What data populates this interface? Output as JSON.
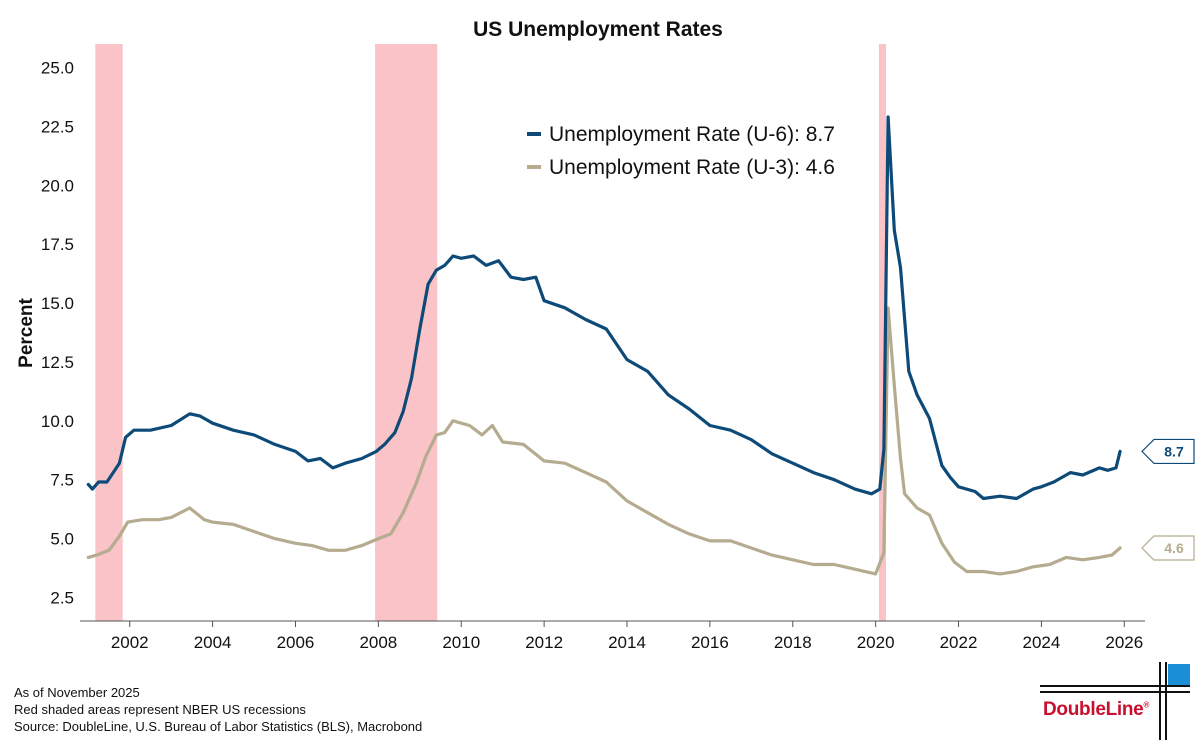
{
  "chart_data": {
    "type": "line",
    "title": "US Unemployment Rates",
    "ylabel": "Percent",
    "xlabel": "",
    "xlim": [
      2000.8,
      2026.5
    ],
    "ylim": [
      1.5,
      26.0
    ],
    "yticks": [
      2.5,
      5.0,
      7.5,
      10.0,
      12.5,
      15.0,
      17.5,
      20.0,
      22.5,
      25.0
    ],
    "ytick_labels": [
      "2.5",
      "5.0",
      "7.5",
      "10.0",
      "12.5",
      "15.0",
      "17.5",
      "20.0",
      "22.5",
      "25.0"
    ],
    "xticks": [
      2002,
      2004,
      2006,
      2008,
      2010,
      2012,
      2014,
      2016,
      2018,
      2020,
      2022,
      2024,
      2026
    ],
    "xtick_labels": [
      "2002",
      "2004",
      "2006",
      "2008",
      "2010",
      "2012",
      "2014",
      "2016",
      "2018",
      "2020",
      "2022",
      "2024",
      "2026"
    ],
    "grid": false,
    "legend_position": "top-center",
    "recessions": [
      {
        "start": 2001.17,
        "end": 2001.83
      },
      {
        "start": 2007.92,
        "end": 2009.42
      },
      {
        "start": 2020.08,
        "end": 2020.25
      }
    ],
    "recession_color": "#f9c3c7",
    "series": [
      {
        "name": "Unemployment Rate (U-6)",
        "legend_label": "Unemployment Rate (U-6): 8.7",
        "end_label": "8.7",
        "color": "#0d4a78",
        "points": [
          [
            2001.0,
            7.3
          ],
          [
            2001.1,
            7.1
          ],
          [
            2001.25,
            7.4
          ],
          [
            2001.45,
            7.4
          ],
          [
            2001.6,
            7.8
          ],
          [
            2001.75,
            8.2
          ],
          [
            2001.9,
            9.3
          ],
          [
            2002.1,
            9.6
          ],
          [
            2002.5,
            9.6
          ],
          [
            2003.0,
            9.8
          ],
          [
            2003.45,
            10.3
          ],
          [
            2003.7,
            10.2
          ],
          [
            2004.0,
            9.9
          ],
          [
            2004.5,
            9.6
          ],
          [
            2005.0,
            9.4
          ],
          [
            2005.5,
            9.0
          ],
          [
            2006.0,
            8.7
          ],
          [
            2006.3,
            8.3
          ],
          [
            2006.6,
            8.4
          ],
          [
            2006.9,
            8.0
          ],
          [
            2007.2,
            8.2
          ],
          [
            2007.6,
            8.4
          ],
          [
            2007.95,
            8.7
          ],
          [
            2008.15,
            9.0
          ],
          [
            2008.4,
            9.5
          ],
          [
            2008.6,
            10.4
          ],
          [
            2008.8,
            11.8
          ],
          [
            2009.0,
            13.9
          ],
          [
            2009.2,
            15.8
          ],
          [
            2009.4,
            16.4
          ],
          [
            2009.6,
            16.6
          ],
          [
            2009.8,
            17.0
          ],
          [
            2010.0,
            16.9
          ],
          [
            2010.3,
            17.0
          ],
          [
            2010.6,
            16.6
          ],
          [
            2010.9,
            16.8
          ],
          [
            2011.2,
            16.1
          ],
          [
            2011.5,
            16.0
          ],
          [
            2011.8,
            16.1
          ],
          [
            2012.0,
            15.1
          ],
          [
            2012.5,
            14.8
          ],
          [
            2013.0,
            14.3
          ],
          [
            2013.5,
            13.9
          ],
          [
            2014.0,
            12.6
          ],
          [
            2014.5,
            12.1
          ],
          [
            2015.0,
            11.1
          ],
          [
            2015.5,
            10.5
          ],
          [
            2016.0,
            9.8
          ],
          [
            2016.5,
            9.6
          ],
          [
            2017.0,
            9.2
          ],
          [
            2017.5,
            8.6
          ],
          [
            2018.0,
            8.2
          ],
          [
            2018.5,
            7.8
          ],
          [
            2019.0,
            7.5
          ],
          [
            2019.5,
            7.1
          ],
          [
            2019.9,
            6.9
          ],
          [
            2020.1,
            7.1
          ],
          [
            2020.2,
            8.8
          ],
          [
            2020.3,
            22.9
          ],
          [
            2020.45,
            18.1
          ],
          [
            2020.6,
            16.5
          ],
          [
            2020.8,
            12.1
          ],
          [
            2021.0,
            11.1
          ],
          [
            2021.3,
            10.1
          ],
          [
            2021.6,
            8.1
          ],
          [
            2021.8,
            7.6
          ],
          [
            2022.0,
            7.2
          ],
          [
            2022.4,
            7.0
          ],
          [
            2022.6,
            6.7
          ],
          [
            2023.0,
            6.8
          ],
          [
            2023.4,
            6.7
          ],
          [
            2023.8,
            7.1
          ],
          [
            2024.0,
            7.2
          ],
          [
            2024.3,
            7.4
          ],
          [
            2024.7,
            7.8
          ],
          [
            2025.0,
            7.7
          ],
          [
            2025.4,
            8.0
          ],
          [
            2025.6,
            7.9
          ],
          [
            2025.8,
            8.0
          ],
          [
            2025.9,
            8.7
          ]
        ]
      },
      {
        "name": "Unemployment Rate (U-3)",
        "legend_label": "Unemployment Rate (U-3): 4.6",
        "end_label": "4.6",
        "color": "#b5ab8f",
        "points": [
          [
            2001.0,
            4.2
          ],
          [
            2001.2,
            4.3
          ],
          [
            2001.5,
            4.5
          ],
          [
            2001.75,
            5.1
          ],
          [
            2001.95,
            5.7
          ],
          [
            2002.3,
            5.8
          ],
          [
            2002.7,
            5.8
          ],
          [
            2003.0,
            5.9
          ],
          [
            2003.45,
            6.3
          ],
          [
            2003.8,
            5.8
          ],
          [
            2004.0,
            5.7
          ],
          [
            2004.5,
            5.6
          ],
          [
            2005.0,
            5.3
          ],
          [
            2005.5,
            5.0
          ],
          [
            2006.0,
            4.8
          ],
          [
            2006.4,
            4.7
          ],
          [
            2006.8,
            4.5
          ],
          [
            2007.2,
            4.5
          ],
          [
            2007.6,
            4.7
          ],
          [
            2008.0,
            5.0
          ],
          [
            2008.3,
            5.2
          ],
          [
            2008.6,
            6.1
          ],
          [
            2008.9,
            7.3
          ],
          [
            2009.15,
            8.5
          ],
          [
            2009.4,
            9.4
          ],
          [
            2009.6,
            9.5
          ],
          [
            2009.8,
            10.0
          ],
          [
            2010.2,
            9.8
          ],
          [
            2010.5,
            9.4
          ],
          [
            2010.75,
            9.8
          ],
          [
            2011.0,
            9.1
          ],
          [
            2011.5,
            9.0
          ],
          [
            2012.0,
            8.3
          ],
          [
            2012.5,
            8.2
          ],
          [
            2013.0,
            7.8
          ],
          [
            2013.5,
            7.4
          ],
          [
            2014.0,
            6.6
          ],
          [
            2014.5,
            6.1
          ],
          [
            2015.0,
            5.6
          ],
          [
            2015.5,
            5.2
          ],
          [
            2016.0,
            4.9
          ],
          [
            2016.5,
            4.9
          ],
          [
            2017.0,
            4.6
          ],
          [
            2017.5,
            4.3
          ],
          [
            2018.0,
            4.1
          ],
          [
            2018.5,
            3.9
          ],
          [
            2019.0,
            3.9
          ],
          [
            2019.5,
            3.7
          ],
          [
            2020.0,
            3.5
          ],
          [
            2020.2,
            4.4
          ],
          [
            2020.3,
            14.8
          ],
          [
            2020.45,
            11.5
          ],
          [
            2020.6,
            8.4
          ],
          [
            2020.7,
            6.9
          ],
          [
            2021.0,
            6.3
          ],
          [
            2021.3,
            6.0
          ],
          [
            2021.6,
            4.8
          ],
          [
            2021.9,
            4.0
          ],
          [
            2022.2,
            3.6
          ],
          [
            2022.6,
            3.6
          ],
          [
            2023.0,
            3.5
          ],
          [
            2023.4,
            3.6
          ],
          [
            2023.8,
            3.8
          ],
          [
            2024.2,
            3.9
          ],
          [
            2024.6,
            4.2
          ],
          [
            2025.0,
            4.1
          ],
          [
            2025.4,
            4.2
          ],
          [
            2025.7,
            4.3
          ],
          [
            2025.9,
            4.6
          ]
        ]
      }
    ]
  },
  "footnotes": {
    "line1": "As of November 2025",
    "line2": "Red shaded areas represent NBER US recessions",
    "line3": "Source: DoubleLine, U.S. Bureau of Labor Statistics (BLS), Macrobond"
  },
  "logo": {
    "text": "DoubleLine",
    "mark": "®",
    "color": "#c8102e",
    "accent_color": "#1a8fd6"
  }
}
